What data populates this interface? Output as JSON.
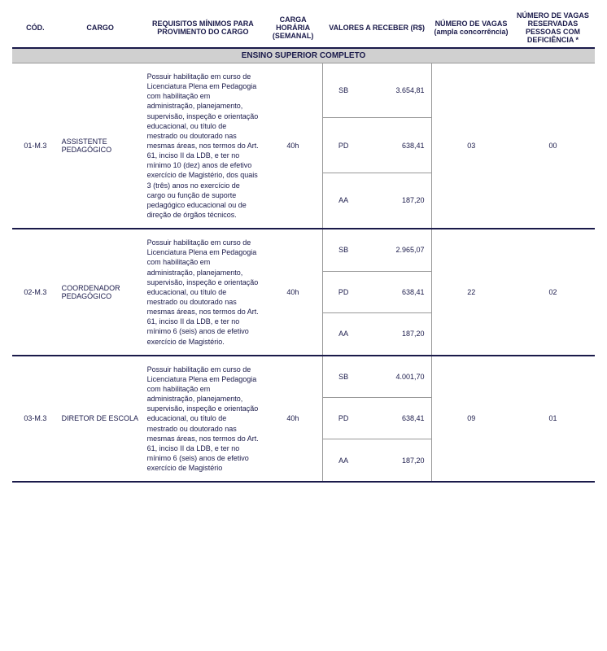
{
  "headers": {
    "cod": "CÓD.",
    "cargo": "CARGO",
    "requisitos": "REQUISITOS MÍNIMOS PARA PROVIMENTO DO CARGO",
    "carga": "CARGA HORÁRIA (SEMANAL)",
    "valores": "VALORES A RECEBER (R$)",
    "ampla": "NÚMERO DE VAGAS (ampla concorrência)",
    "deficiencia": "NÚMERO DE VAGAS RESERVADAS PESSOAS COM DEFICIÊNCIA *"
  },
  "section": "ENSINO SUPERIOR COMPLETO",
  "rows": [
    {
      "cod": "01-M.3",
      "cargo": "ASSISTENTE PEDAGÓGICO",
      "req": "Possuir habilitação em curso de Licenciatura Plena em Pedagogia com habilitação em administração, planejamento, supervisão, inspeção e orientação educacional, ou título de mestrado ou doutorado nas mesmas áreas, nos termos do Art. 61, inciso II da LDB, e ter no mínimo 10 (dez) anos de efetivo exercício de Magistério, dos quais 3 (três) anos no exercício de cargo ou função de suporte pedagógico educacional ou de direção de órgãos técnicos.",
      "carga": "40h",
      "valores": [
        {
          "label": "SB",
          "value": "3.654,81"
        },
        {
          "label": "PD",
          "value": "638,41"
        },
        {
          "label": "AA",
          "value": "187,20"
        }
      ],
      "ampla": "03",
      "def": "00"
    },
    {
      "cod": "02-M.3",
      "cargo": "COORDENADOR PEDAGÓGICO",
      "req": "Possuir habilitação em curso de Licenciatura Plena em Pedagogia com habilitação em administração, planejamento, supervisão, inspeção e orientação educacional, ou título de mestrado ou doutorado nas mesmas áreas, nos termos do Art. 61, inciso II da LDB, e ter no mínimo 6 (seis) anos de efetivo exercício de Magistério.",
      "carga": "40h",
      "valores": [
        {
          "label": "SB",
          "value": "2.965,07"
        },
        {
          "label": "PD",
          "value": "638,41"
        },
        {
          "label": "AA",
          "value": "187,20"
        }
      ],
      "ampla": "22",
      "def": "02"
    },
    {
      "cod": "03-M.3",
      "cargo": "DIRETOR DE ESCOLA",
      "req": "Possuir habilitação em curso de Licenciatura Plena em Pedagogia com habilitação em administração, planejamento, supervisão, inspeção e orientação educacional, ou título de mestrado ou doutorado nas mesmas áreas, nos termos do Art. 61, inciso II da LDB, e ter no mínimo 6 (seis) anos de efetivo exercício de Magistério",
      "carga": "40h",
      "valores": [
        {
          "label": "SB",
          "value": "4.001,70"
        },
        {
          "label": "PD",
          "value": "638,41"
        },
        {
          "label": "AA",
          "value": "187,20"
        }
      ],
      "ampla": "09",
      "def": "01"
    }
  ],
  "style": {
    "text_color": "#1a1a4a",
    "section_bg": "#d0d0d0",
    "border_color": "#999999",
    "header_border": "#1a1a4a"
  }
}
